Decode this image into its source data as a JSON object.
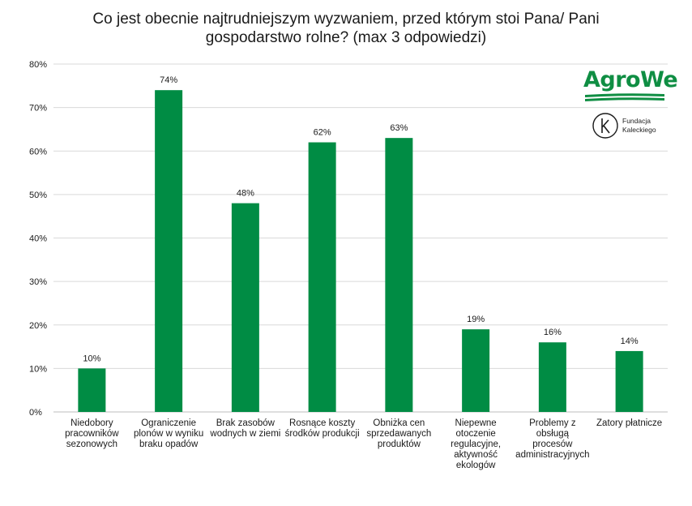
{
  "title_lines": [
    "Co jest obecnie najtrudniejszym wyzwaniem, przed którym stoi Pana/ Pani",
    "gospodarstwo rolne? (max 3 odpowiedzi)"
  ],
  "logos": {
    "agrowe": "AgroWe",
    "fundacja_line1": "Fundacja",
    "fundacja_line2": "Kaleckiego"
  },
  "chart_data": {
    "type": "bar",
    "title": "Co jest obecnie najtrudniejszym wyzwaniem, przed którym stoi Pana/ Pani gospodarstwo rolne? (max 3 odpowiedzi)",
    "categories": [
      [
        "Niedobory",
        "pracowników",
        "sezonowych"
      ],
      [
        "Ograniczenie",
        "plonów w wyniku",
        "braku opadów"
      ],
      [
        "Brak zasobów",
        "wodnych w ziemi"
      ],
      [
        "Rosnące koszty",
        "środków produkcji"
      ],
      [
        "Obniżka cen",
        "sprzedawanych",
        "produktów"
      ],
      [
        "Niepewne",
        "otoczenie",
        "regulacyjne,",
        "aktywność",
        "ekologów"
      ],
      [
        "Problemy z",
        "obsługą",
        "procesów",
        "administracyjnych"
      ],
      [
        "Zatory płatnicze"
      ]
    ],
    "values": [
      10,
      74,
      48,
      62,
      63,
      19,
      16,
      14
    ],
    "value_labels": [
      "10%",
      "74%",
      "48%",
      "62%",
      "63%",
      "19%",
      "16%",
      "14%"
    ],
    "bar_color": "#008c44",
    "ylim": [
      0,
      80
    ],
    "yticks": [
      0,
      10,
      20,
      30,
      40,
      50,
      60,
      70,
      80
    ],
    "ytick_labels": [
      "0%",
      "10%",
      "20%",
      "30%",
      "40%",
      "50%",
      "60%",
      "70%",
      "80%"
    ],
    "grid": true,
    "legend": "none"
  }
}
